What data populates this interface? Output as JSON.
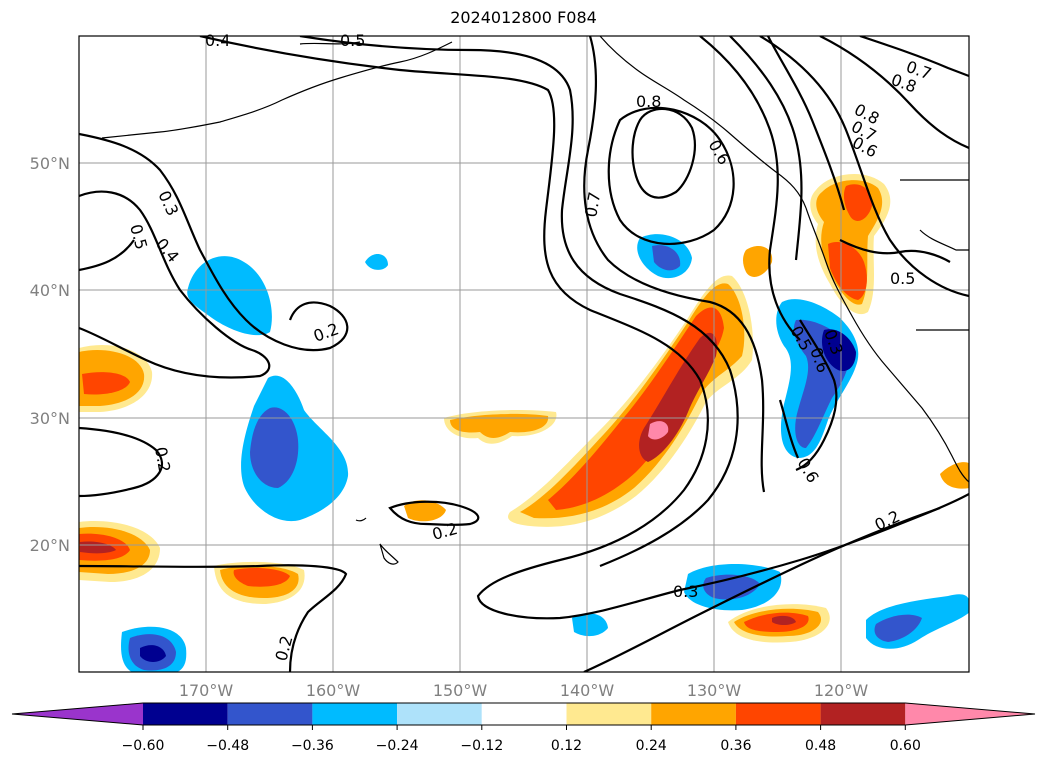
{
  "title": "2024012800 F084",
  "lat_labels": [
    "50°N",
    "40°N",
    "30°N",
    "20°N"
  ],
  "lon_labels": [
    "170°W",
    "160°W",
    "150°W",
    "140°W",
    "130°W",
    "120°W"
  ],
  "colorbar": {
    "colors": [
      "#9a34cc",
      "#000090",
      "#3355cc",
      "#00bbff",
      "#aee2fa",
      "#ffffff",
      "#ffe990",
      "#ffa500",
      "#ff4500",
      "#b22222",
      "#ff88aa"
    ],
    "ticks": [
      "−0.60",
      "−0.48",
      "−0.36",
      "−0.24",
      "−0.12",
      "0.12",
      "0.24",
      "0.36",
      "0.48",
      "0.60"
    ]
  },
  "contour_labels": [
    "0.4",
    "0.5",
    "0.7",
    "0.8",
    "0.8",
    "0.6",
    "0.8",
    "0.7",
    "0.6",
    "0.7",
    "0.3",
    "0.5",
    "0.4",
    "0.2",
    "0.2",
    "0.2",
    "0.3",
    "0.2",
    "0.2",
    "0.5",
    "0.5",
    "0.6",
    "0.3",
    "0.6"
  ]
}
